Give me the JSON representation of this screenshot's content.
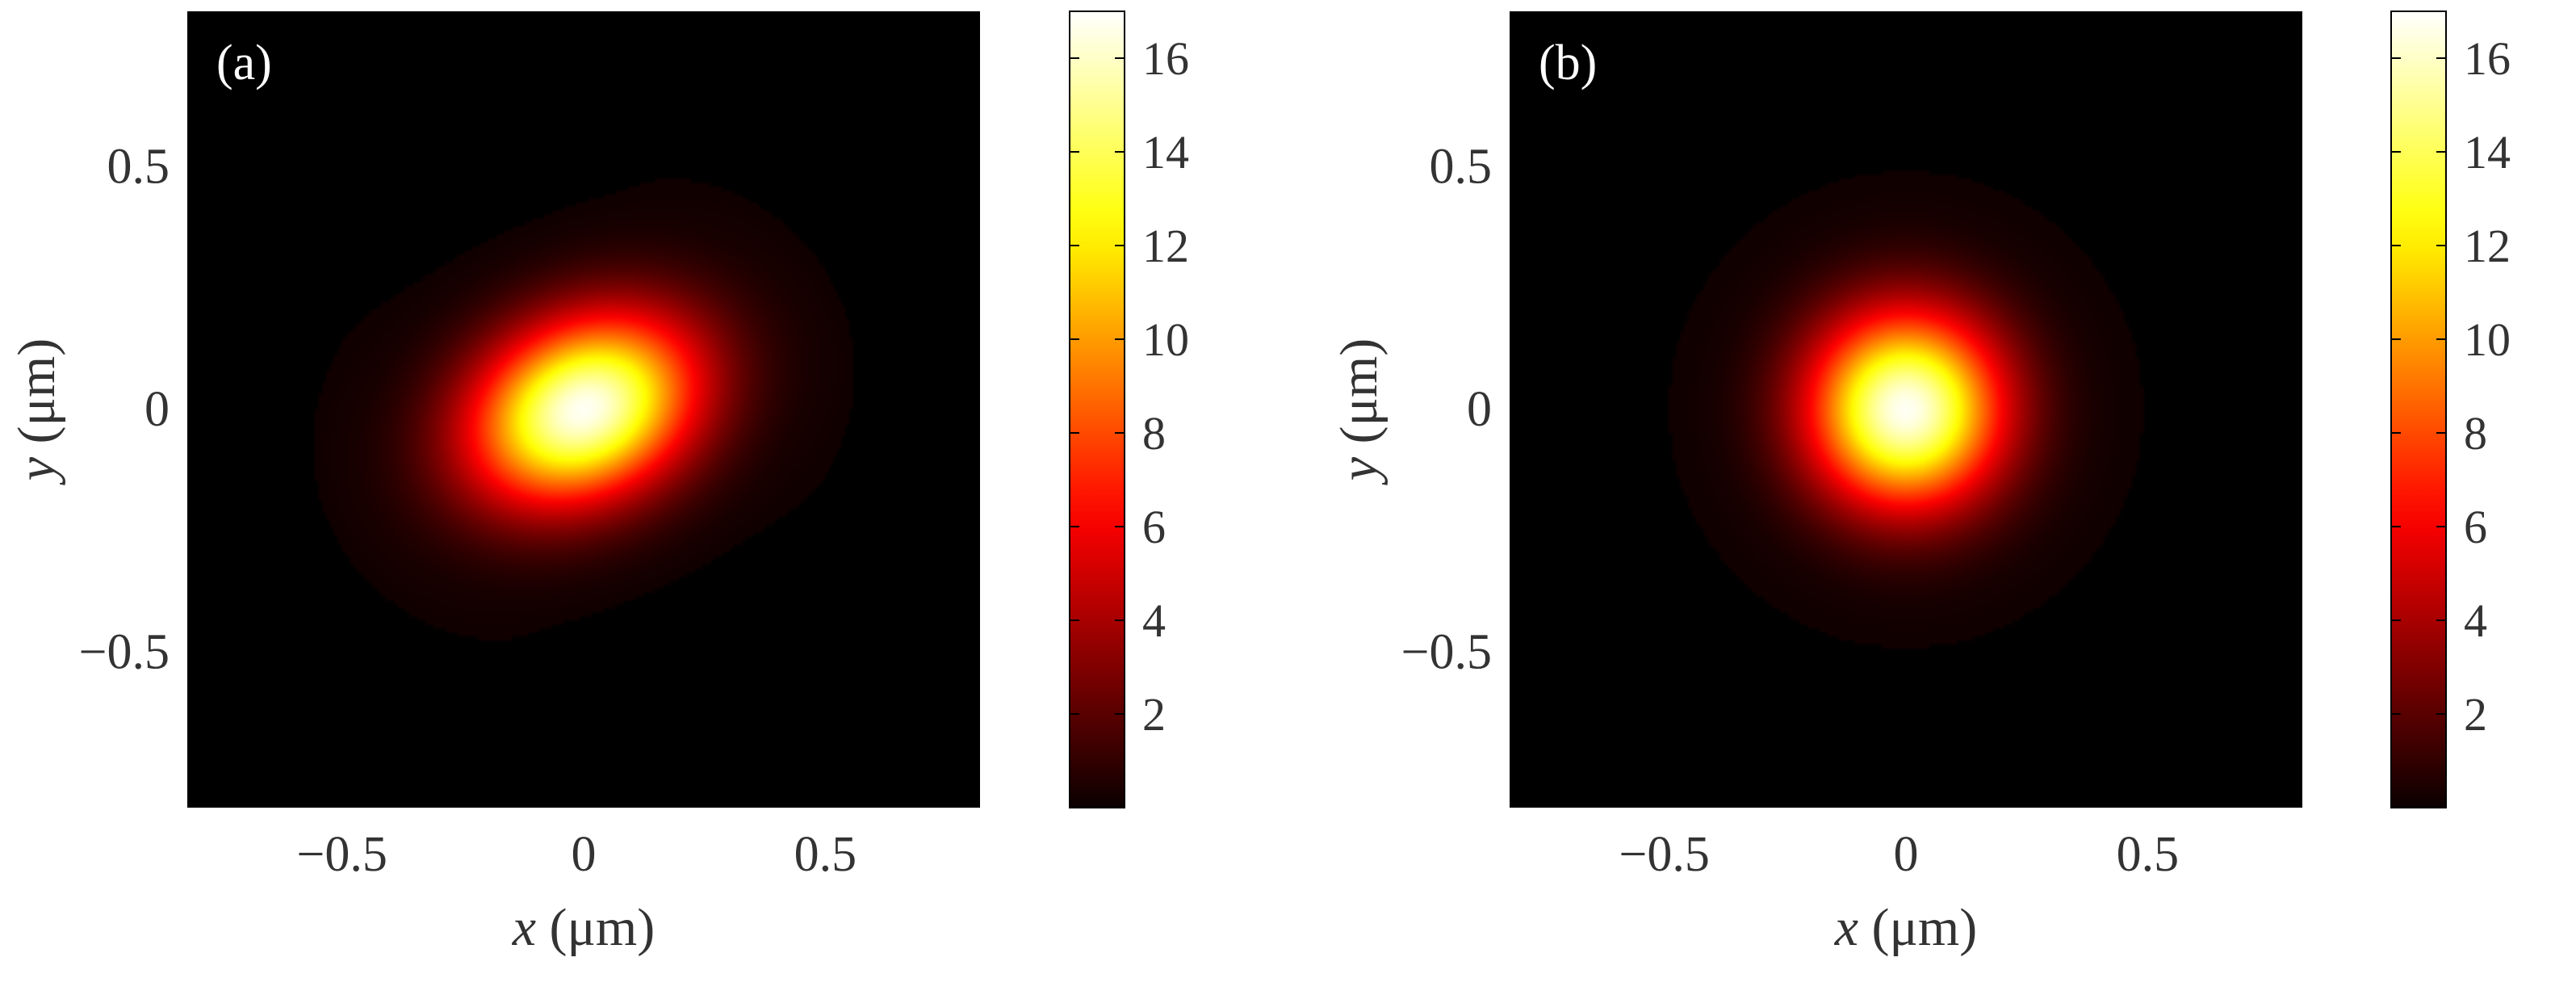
{
  "chart_data": [
    {
      "type": "heatmap",
      "panel_label": "(a)",
      "xlabel_var": "x",
      "xlabel_unit": "(μm)",
      "ylabel_var": "y",
      "ylabel_unit": "(μm)",
      "xlim": [
        -0.82,
        0.82
      ],
      "ylim": [
        -0.82,
        0.82
      ],
      "x_ticks": [
        -0.5,
        0,
        0.5
      ],
      "x_tick_labels": [
        "−0.5",
        "0",
        "0.5"
      ],
      "y_ticks": [
        -0.5,
        0,
        0.5
      ],
      "y_tick_labels": [
        "−0.5",
        "0",
        "0.5"
      ],
      "colorbar": {
        "range": [
          0,
          17
        ],
        "ticks": [
          2,
          4,
          6,
          8,
          10,
          12,
          14,
          16
        ],
        "tick_labels": [
          "2",
          "4",
          "6",
          "8",
          "10",
          "12",
          "14",
          "16"
        ],
        "colormap": "hot"
      },
      "spot": {
        "peak": 16.8,
        "center": [
          0,
          0
        ],
        "sigma_major": 0.17,
        "sigma_minor": 0.125,
        "rotation_deg": 25,
        "ring_radius": 0.52,
        "ring_intensity": 0.12
      }
    },
    {
      "type": "heatmap",
      "panel_label": "(b)",
      "xlabel_var": "x",
      "xlabel_unit": "(μm)",
      "ylabel_var": "y",
      "ylabel_unit": "(μm)",
      "xlim": [
        -0.82,
        0.82
      ],
      "ylim": [
        -0.82,
        0.82
      ],
      "x_ticks": [
        -0.5,
        0,
        0.5
      ],
      "x_tick_labels": [
        "−0.5",
        "0",
        "0.5"
      ],
      "y_ticks": [
        -0.5,
        0,
        0.5
      ],
      "y_tick_labels": [
        "−0.5",
        "0",
        "0.5"
      ],
      "colorbar": {
        "range": [
          0,
          17
        ],
        "ticks": [
          2,
          4,
          6,
          8,
          10,
          12,
          14,
          16
        ],
        "tick_labels": [
          "2",
          "4",
          "6",
          "8",
          "10",
          "12",
          "14",
          "16"
        ],
        "colormap": "hot"
      },
      "spot": {
        "peak": 16.8,
        "center": [
          0,
          0
        ],
        "sigma_major": 0.14,
        "sigma_minor": 0.14,
        "rotation_deg": 0,
        "ring_radius": 0.52,
        "ring_intensity": 0.12
      }
    }
  ],
  "colors": {
    "background": "#000000",
    "axis_text": "#333333",
    "panel_label": "#ffffff"
  }
}
